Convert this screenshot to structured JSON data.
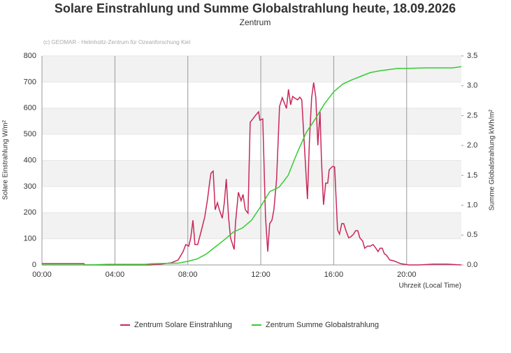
{
  "chart_data": {
    "type": "line",
    "title": "Solare Einstrahlung und Summe Globalstrahlung heute, 18.09.2026",
    "subtitle": "Zentrum",
    "credit": "(c) GEOMAR - Helmholtz-Zentrum für Ozeanforschung Kiel",
    "ylabel": "Solare Einstrahlung W/m²",
    "y2label": "Summe Globalstrahlung kWh/m²",
    "xlabel": "Uhrzeit (Local Time)",
    "xlim": [
      0,
      23
    ],
    "xticks": [
      {
        "value": 0,
        "label": "00:00"
      },
      {
        "value": 4,
        "label": "04:00"
      },
      {
        "value": 8,
        "label": "08:00"
      },
      {
        "value": 12,
        "label": "12:00"
      },
      {
        "value": 16,
        "label": "16:00"
      },
      {
        "value": 20,
        "label": "20:00"
      }
    ],
    "ylim": [
      0,
      800
    ],
    "yticks": [
      0,
      100,
      200,
      300,
      400,
      500,
      600,
      700,
      800
    ],
    "y2lim": [
      0,
      3.5
    ],
    "y2ticks": [
      {
        "value": 0,
        "label": "0.0"
      },
      0.5,
      {
        "value": 1,
        "label": "1.0"
      },
      1.5,
      {
        "value": 2,
        "label": "2.0"
      },
      2.5,
      {
        "value": 3,
        "label": "3.0"
      },
      3.5
    ],
    "grid": true,
    "legend": "bottom",
    "series": [
      {
        "name": "Zentrum Solare Einstrahlung",
        "color": "#c8285a",
        "x": [
          0,
          2.3,
          2.34,
          5.94,
          6.51,
          7.09,
          7.47,
          7.74,
          7.89,
          8.05,
          8.16,
          8.28,
          8.39,
          8.54,
          8.74,
          8.93,
          9.08,
          9.2,
          9.27,
          9.39,
          9.5,
          9.62,
          9.73,
          9.89,
          10.0,
          10.11,
          10.23,
          10.34,
          10.54,
          10.61,
          10.77,
          10.92,
          11.03,
          11.15,
          11.3,
          11.42,
          11.57,
          11.72,
          11.88,
          11.95,
          12.11,
          12.26,
          12.38,
          12.49,
          12.61,
          12.72,
          12.87,
          13.03,
          13.18,
          13.3,
          13.41,
          13.52,
          13.64,
          13.75,
          13.83,
          14.02,
          14.14,
          14.25,
          14.56,
          14.67,
          14.79,
          14.9,
          15.02,
          15.13,
          15.25,
          15.33,
          15.44,
          15.56,
          15.67,
          15.75,
          15.86,
          15.94,
          16.05,
          16.21,
          16.32,
          16.44,
          16.55,
          16.67,
          16.82,
          16.93,
          17.09,
          17.2,
          17.32,
          17.43,
          17.59,
          17.7,
          17.85,
          18.01,
          18.16,
          18.31,
          18.43,
          18.54,
          18.66,
          18.77,
          18.89,
          19.08,
          19.27,
          19.46,
          19.66,
          20.11,
          20.69,
          21.46,
          22.22,
          22.99
        ],
        "values": [
          5,
          5,
          0,
          0,
          3,
          8,
          19,
          51,
          78,
          72,
          104,
          171,
          78,
          78,
          131,
          185,
          252,
          318,
          351,
          359,
          211,
          238,
          211,
          179,
          238,
          329,
          185,
          104,
          59,
          158,
          278,
          246,
          270,
          211,
          198,
          546,
          559,
          573,
          586,
          554,
          559,
          185,
          51,
          158,
          171,
          211,
          329,
          607,
          640,
          618,
          599,
          672,
          613,
          645,
          640,
          632,
          642,
          632,
          252,
          479,
          640,
          698,
          640,
          458,
          586,
          399,
          230,
          313,
          313,
          364,
          372,
          377,
          375,
          134,
          118,
          158,
          158,
          131,
          104,
          107,
          118,
          131,
          131,
          104,
          91,
          64,
          72,
          72,
          78,
          64,
          51,
          64,
          64,
          43,
          37,
          19,
          16,
          11,
          5,
          0,
          0,
          3,
          3,
          0
        ]
      },
      {
        "name": "Zentrum Summe Globalstrahlung",
        "color": "#33cc33",
        "axis": "y2",
        "x": [
          0,
          2.5,
          3.6,
          5.7,
          6,
          7.5,
          8,
          8.5,
          9,
          9.5,
          10,
          10.5,
          11,
          11.5,
          12,
          12.5,
          13,
          13.5,
          14,
          14.5,
          15,
          15.5,
          16,
          16.5,
          17,
          17.5,
          18,
          18.5,
          19,
          19.5,
          20,
          21,
          22,
          22.5,
          23
        ],
        "values": [
          0,
          0,
          0.01,
          0.01,
          0.02,
          0.03,
          0.06,
          0.1,
          0.18,
          0.3,
          0.42,
          0.55,
          0.62,
          0.75,
          0.98,
          1.23,
          1.3,
          1.5,
          1.88,
          2.22,
          2.45,
          2.7,
          2.9,
          3.03,
          3.1,
          3.16,
          3.22,
          3.25,
          3.27,
          3.29,
          3.29,
          3.3,
          3.3,
          3.3,
          3.32
        ]
      }
    ]
  }
}
